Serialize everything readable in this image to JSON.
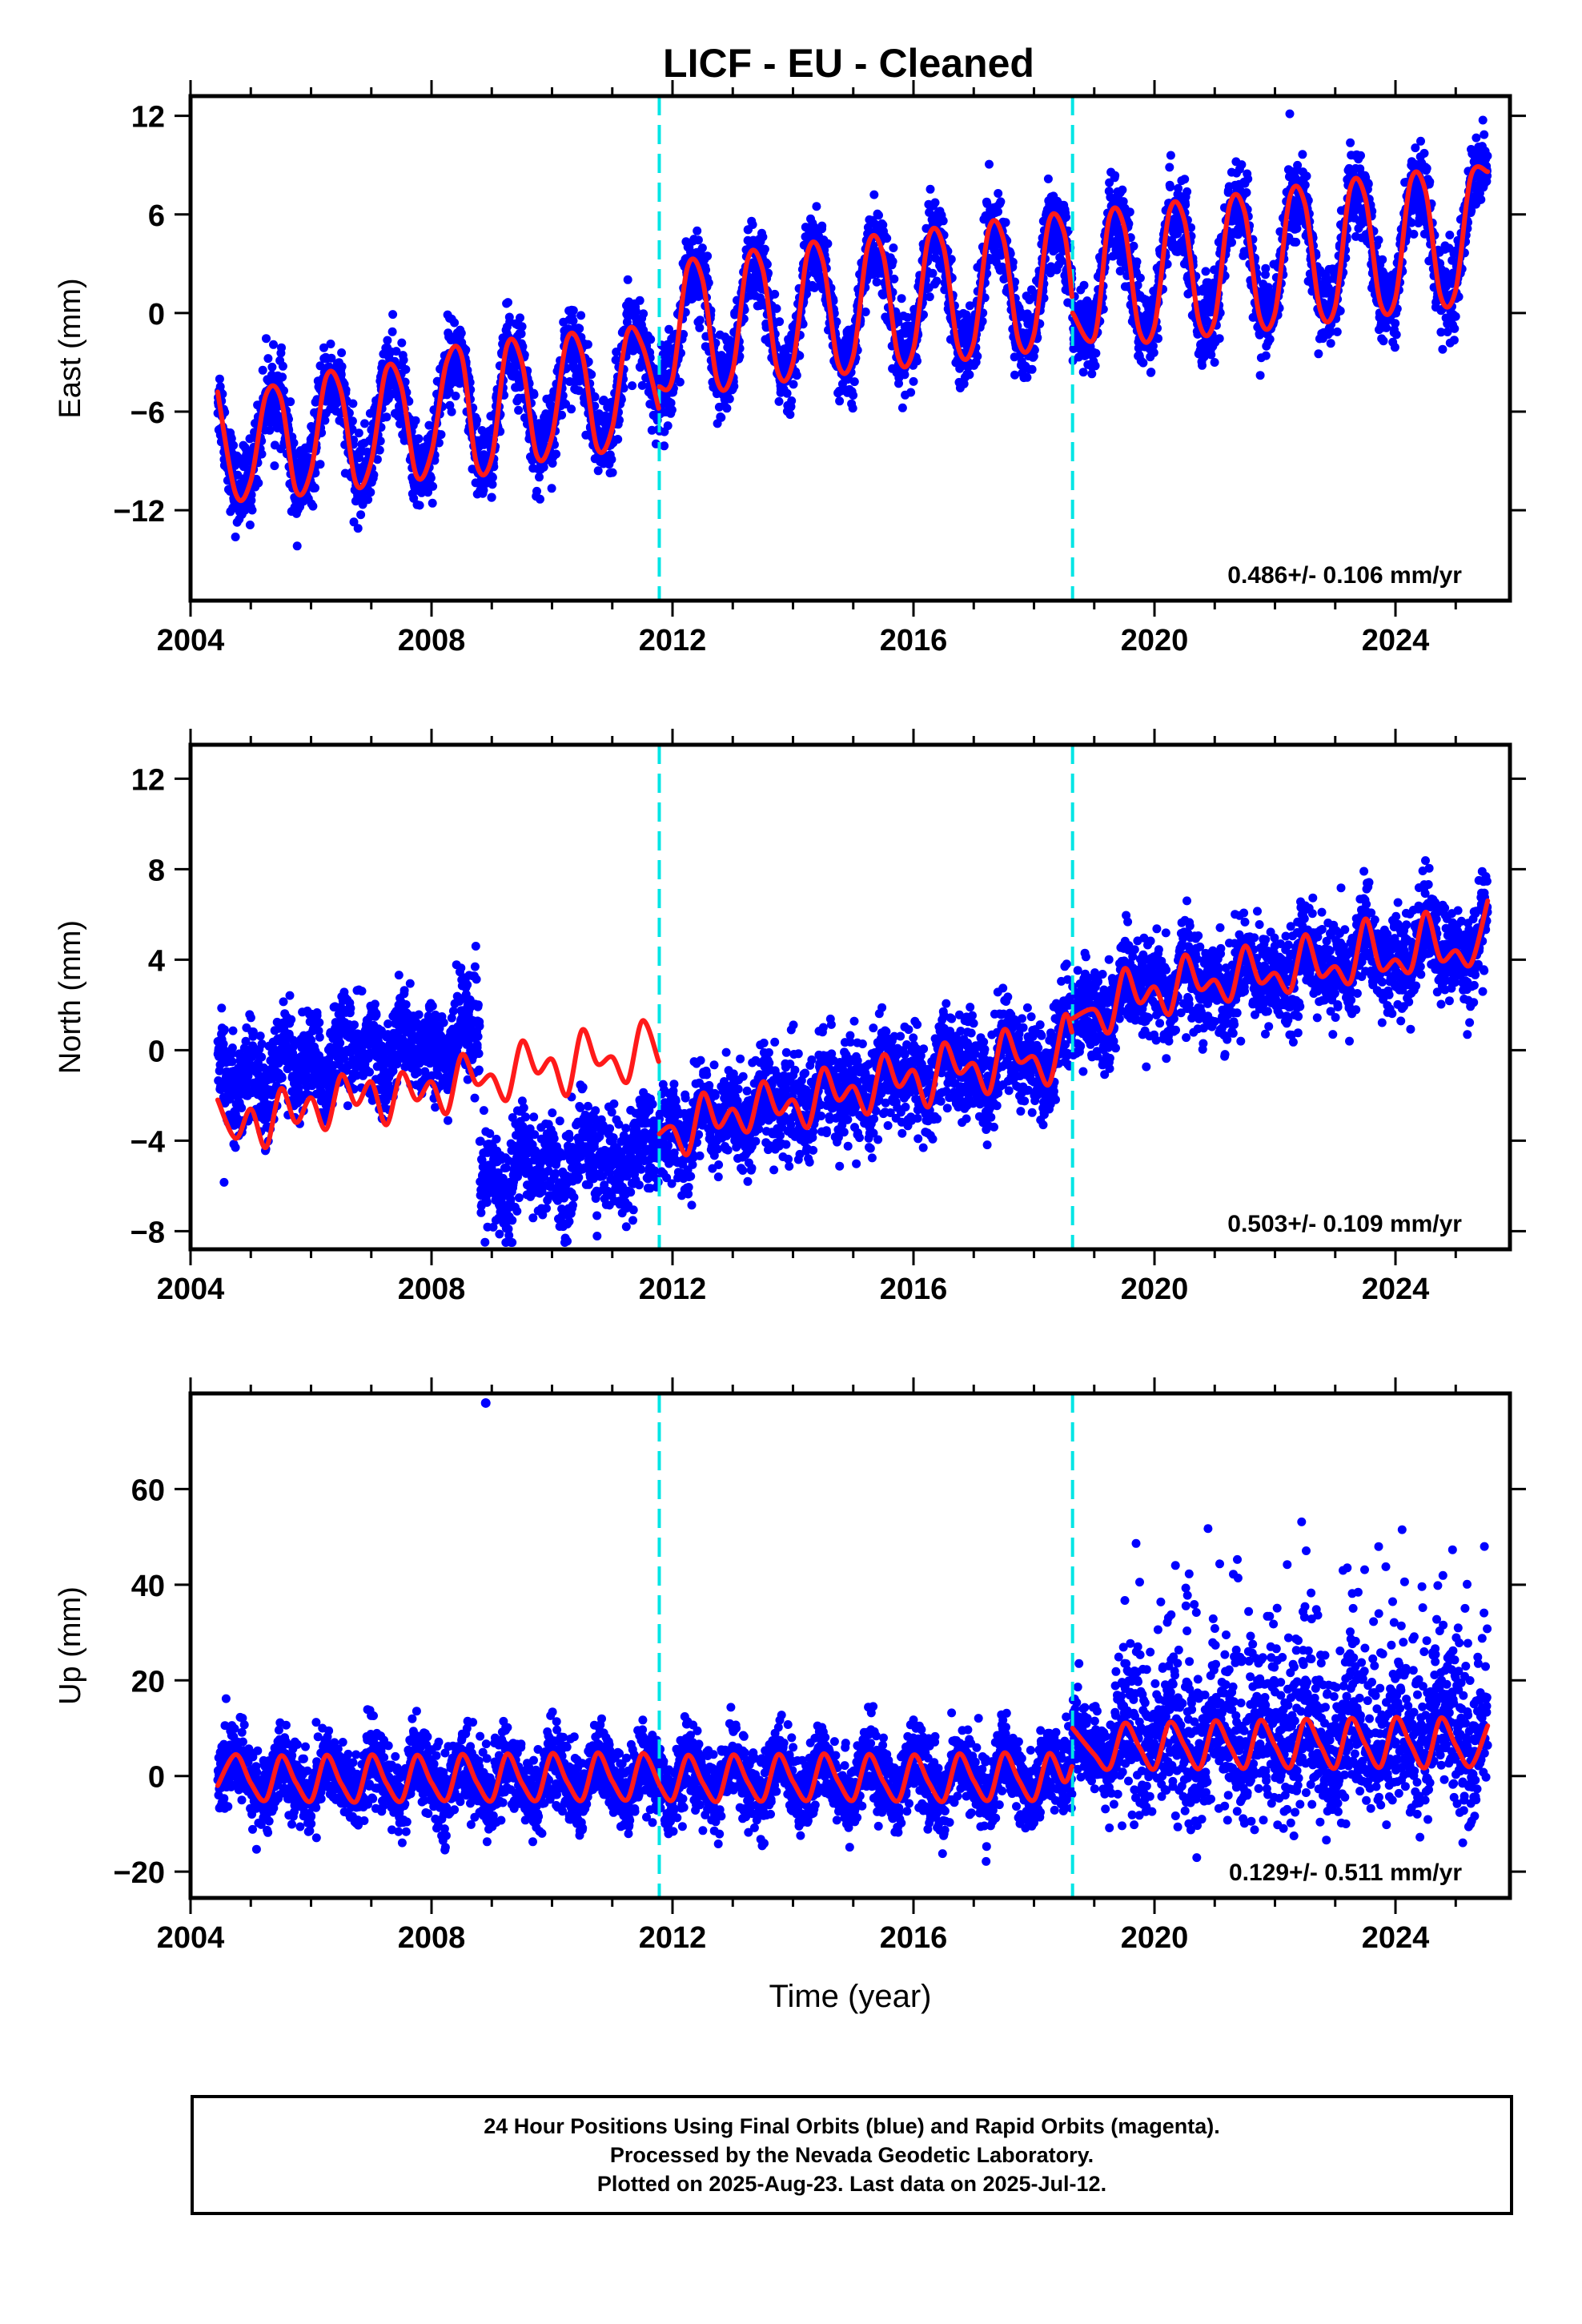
{
  "chart_data": {
    "type": "scatter",
    "title": "LICF  - EU - Cleaned",
    "xlabel": "Time (year)",
    "x_ticks": [
      "2004",
      "2008",
      "2012",
      "2016",
      "2020",
      "2024"
    ],
    "xlim": [
      2004,
      2025.9
    ],
    "offset_epochs": [
      2011.78,
      2018.64
    ],
    "colors": {
      "points": "#0000ff",
      "model": "#ff1a1a",
      "offset": "#00e5e5"
    },
    "first_data": 2004.45,
    "last_data": 2025.53,
    "panels": [
      {
        "component": "East",
        "ylabel": "East (mm)",
        "ylim": [
          -17.5,
          13.2
        ],
        "y_ticks": [
          -12,
          -6,
          0,
          6,
          12
        ],
        "rate_label": "0.486+/- 0.106 mm/yr",
        "segments": [
          {
            "x": [
              2004.45,
              2004.75,
              2005.0,
              2005.25,
              2005.5,
              2005.75,
              2006.0,
              2006.25,
              2006.5,
              2006.75,
              2007.0,
              2007.25,
              2007.5,
              2007.75,
              2008.0,
              2008.25,
              2008.5,
              2008.75,
              2009.0,
              2009.25,
              2009.5,
              2009.75,
              2010.0,
              2010.25,
              2010.5,
              2010.75,
              2011.0,
              2011.25,
              2011.5,
              2011.77
            ],
            "y": [
              -4.8,
              -11.0,
              -10.2,
              -5.0,
              -5.2,
              -10.8,
              -9.6,
              -3.9,
              -4.8,
              -10.4,
              -9.0,
              -3.4,
              -4.5,
              -9.9,
              -8.5,
              -3.0,
              -2.6,
              -9.2,
              -8.8,
              -2.0,
              -3.0,
              -8.7,
              -7.5,
              -1.6,
              -2.5,
              -8.2,
              -7.0,
              -1.2,
              -2.0,
              -5.8
            ]
          },
          {
            "x": [
              2011.78,
              2012.0,
              2012.25,
              2012.5,
              2012.75,
              2013.0,
              2013.25,
              2013.5,
              2013.75,
              2014.0,
              2014.25,
              2014.5,
              2014.75,
              2015.0,
              2015.25,
              2015.5,
              2015.75,
              2016.0,
              2016.25,
              2016.5,
              2016.75,
              2017.0,
              2017.25,
              2017.5,
              2017.75,
              2018.0,
              2018.25,
              2018.5,
              2018.63
            ],
            "y": [
              -4.5,
              -4.0,
              2.8,
              2.0,
              -4.2,
              -3.5,
              3.3,
              2.6,
              -3.6,
              -3.0,
              3.8,
              3.1,
              -3.1,
              -2.6,
              4.2,
              3.5,
              -2.7,
              -2.2,
              4.6,
              4.0,
              -2.2,
              -1.8,
              5.1,
              4.4,
              -1.8,
              -1.3,
              5.6,
              4.9,
              1.0
            ]
          },
          {
            "x": [
              2018.64,
              2019.0,
              2019.25,
              2019.5,
              2019.75,
              2020.0,
              2020.25,
              2020.5,
              2020.75,
              2021.0,
              2021.25,
              2021.5,
              2021.75,
              2022.0,
              2022.25,
              2022.5,
              2022.75,
              2023.0,
              2023.25,
              2023.5,
              2023.75,
              2024.0,
              2024.25,
              2024.5,
              2024.75,
              2025.0,
              2025.25,
              2025.53
            ],
            "y": [
              0.0,
              -1.5,
              5.8,
              5.2,
              -1.1,
              -0.8,
              6.2,
              5.6,
              -0.7,
              -0.4,
              6.6,
              6.1,
              -0.3,
              0.0,
              7.1,
              6.6,
              0.2,
              0.4,
              7.6,
              7.0,
              0.6,
              0.9,
              8.0,
              7.4,
              1.0,
              1.4,
              8.3,
              8.6
            ]
          }
        ]
      },
      {
        "component": "North",
        "ylabel": "North (mm)",
        "ylim": [
          -8.8,
          13.5
        ],
        "y_ticks": [
          -8,
          -4,
          0,
          4,
          8,
          12
        ],
        "rate_label": "0.503+/- 0.109 mm/yr",
        "segments": [
          {
            "x": [
              2004.45,
              2004.75,
              2005.0,
              2005.25,
              2005.5,
              2005.75,
              2006.0,
              2006.25,
              2006.5,
              2006.75,
              2007.0,
              2007.25,
              2007.5,
              2007.75,
              2008.0,
              2008.25,
              2008.5,
              2008.75,
              2009.0,
              2009.25,
              2009.5,
              2009.75,
              2010.0,
              2010.25,
              2010.5,
              2010.75,
              2011.0,
              2011.25,
              2011.5,
              2011.77
            ],
            "y": [
              -2.2,
              -3.9,
              -2.6,
              -4.3,
              -1.7,
              -3.2,
              -2.1,
              -3.5,
              -1.1,
              -2.4,
              -1.4,
              -3.3,
              -1.0,
              -2.2,
              -1.4,
              -2.8,
              -0.2,
              -1.5,
              -1.1,
              -2.2,
              0.4,
              -1.0,
              -0.4,
              -2.0,
              0.9,
              -0.6,
              -0.3,
              -1.4,
              1.3,
              -0.5
            ]
          },
          {
            "x": [
              2011.78,
              2012.0,
              2012.25,
              2012.5,
              2012.75,
              2013.0,
              2013.25,
              2013.5,
              2013.75,
              2014.0,
              2014.25,
              2014.5,
              2014.75,
              2015.0,
              2015.25,
              2015.5,
              2015.75,
              2016.0,
              2016.25,
              2016.5,
              2016.75,
              2017.0,
              2017.25,
              2017.5,
              2017.75,
              2018.0,
              2018.25,
              2018.5,
              2018.63
            ],
            "y": [
              -3.7,
              -3.4,
              -4.6,
              -1.9,
              -3.4,
              -2.6,
              -3.6,
              -1.4,
              -2.8,
              -2.2,
              -3.4,
              -0.8,
              -2.2,
              -1.6,
              -2.8,
              -0.2,
              -1.6,
              -0.9,
              -2.5,
              0.3,
              -1.0,
              -0.6,
              -1.9,
              0.9,
              -0.5,
              -0.3,
              -1.5,
              1.5,
              0.8
            ]
          },
          {
            "x": [
              2018.64,
              2019.0,
              2019.25,
              2019.5,
              2019.75,
              2020.0,
              2020.25,
              2020.5,
              2020.75,
              2021.0,
              2021.25,
              2021.5,
              2021.75,
              2022.0,
              2022.25,
              2022.5,
              2022.75,
              2023.0,
              2023.25,
              2023.5,
              2023.75,
              2024.0,
              2024.25,
              2024.5,
              2024.75,
              2025.0,
              2025.25,
              2025.53
            ],
            "y": [
              1.4,
              1.8,
              0.8,
              3.6,
              2.1,
              2.8,
              1.6,
              4.2,
              2.7,
              3.1,
              2.2,
              4.6,
              3.0,
              3.4,
              2.6,
              5.1,
              3.3,
              3.7,
              3.0,
              5.8,
              3.6,
              4.0,
              3.5,
              6.1,
              4.0,
              4.4,
              3.8,
              6.6
            ]
          }
        ]
      },
      {
        "component": "Up",
        "ylabel": "Up (mm)",
        "ylim": [
          -25.5,
          80
        ],
        "y_ticks": [
          -20,
          0,
          20,
          40,
          60
        ],
        "rate_label": "0.129+/- 0.511 mm/yr",
        "segments": [
          {
            "x": [
              2004.45,
              2004.75,
              2005.0,
              2005.25,
              2005.5,
              2005.75,
              2006.0,
              2006.25,
              2006.5,
              2006.75,
              2007.0,
              2007.25,
              2007.5,
              2007.75,
              2008.0,
              2008.25,
              2008.5,
              2008.75,
              2009.0,
              2009.25,
              2009.5,
              2009.75,
              2010.0,
              2010.25,
              2010.5,
              2010.75,
              2011.0,
              2011.25,
              2011.5,
              2011.77
            ],
            "y": [
              -2.0,
              4.5,
              -1.5,
              -5.0,
              4.2,
              -1.4,
              -5.2,
              4.3,
              -1.6,
              -5.3,
              4.4,
              -1.5,
              -5.2,
              4.3,
              -1.4,
              -5.0,
              4.5,
              -1.3,
              -5.1,
              4.6,
              -1.5,
              -5.0,
              4.7,
              -1.2,
              -5.0,
              4.8,
              -1.1,
              -4.9,
              4.7,
              -1.5
            ]
          },
          {
            "x": [
              2011.78,
              2012.0,
              2012.25,
              2012.5,
              2012.75,
              2013.0,
              2013.25,
              2013.5,
              2013.75,
              2014.0,
              2014.25,
              2014.5,
              2014.75,
              2015.0,
              2015.25,
              2015.5,
              2015.75,
              2016.0,
              2016.25,
              2016.5,
              2016.75,
              2017.0,
              2017.25,
              2017.5,
              2017.75,
              2018.0,
              2018.25,
              2018.5,
              2018.63
            ],
            "y": [
              -1.8,
              -5.0,
              4.3,
              -1.4,
              -5.2,
              4.4,
              -1.3,
              -5.1,
              4.5,
              -1.2,
              -5.0,
              4.6,
              -1.1,
              -5.0,
              4.5,
              -1.2,
              -5.1,
              4.4,
              -1.3,
              -5.2,
              4.6,
              -1.0,
              -5.0,
              4.8,
              -0.9,
              -5.0,
              4.7,
              -1.2,
              2.0
            ]
          },
          {
            "x": [
              2018.64,
              2019.0,
              2019.25,
              2019.5,
              2019.75,
              2020.0,
              2020.25,
              2020.5,
              2020.75,
              2021.0,
              2021.25,
              2021.5,
              2021.75,
              2022.0,
              2022.25,
              2022.5,
              2022.75,
              2023.0,
              2023.25,
              2023.5,
              2023.75,
              2024.0,
              2024.25,
              2024.5,
              2024.75,
              2025.0,
              2025.25,
              2025.53
            ],
            "y": [
              10.0,
              4.5,
              1.6,
              11.0,
              6.0,
              1.5,
              11.2,
              6.3,
              1.6,
              11.5,
              6.2,
              1.7,
              11.6,
              6.4,
              1.8,
              11.8,
              6.5,
              1.7,
              12.0,
              6.6,
              1.9,
              12.2,
              6.6,
              1.8,
              12.1,
              6.4,
              2.0,
              10.5
            ]
          }
        ],
        "outliers": [
          {
            "x": 2008.9,
            "y": 78
          }
        ]
      }
    ]
  },
  "footer": {
    "lines": [
      "24 Hour Positions Using Final Orbits (blue) and Rapid Orbits (magenta).",
      "Processed by the Nevada Geodetic Laboratory.",
      "Plotted on 2025-Aug-23. Last data on 2025-Jul-12."
    ]
  }
}
